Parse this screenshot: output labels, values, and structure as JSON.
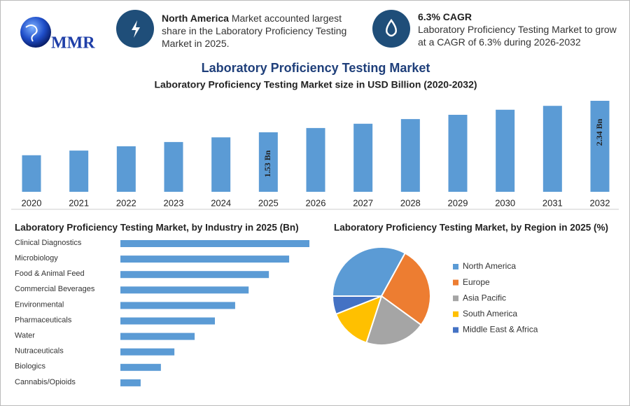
{
  "header": {
    "logo": "MMR",
    "box1": {
      "title": "North America",
      "text": "Market accounted largest share in the Laboratory Proficiency Testing Market in 2025."
    },
    "box2": {
      "title": "6.3% CAGR",
      "text": "Laboratory Proficiency Testing Market to grow at a CAGR of 6.3% during 2026-2032"
    }
  },
  "title": "Laboratory Proficiency Testing Market",
  "chart_data": [
    {
      "type": "bar",
      "title": "Laboratory Proficiency Testing Market size in USD Billion (2020-2032)",
      "categories": [
        "2020",
        "2021",
        "2022",
        "2023",
        "2024",
        "2025",
        "2026",
        "2027",
        "2028",
        "2029",
        "2030",
        "2031",
        "2032"
      ],
      "values": [
        0.94,
        1.06,
        1.17,
        1.28,
        1.4,
        1.53,
        1.64,
        1.75,
        1.87,
        1.98,
        2.11,
        2.21,
        2.34
      ],
      "value_labels": [
        null,
        null,
        null,
        null,
        null,
        "1.53 Bn",
        null,
        null,
        null,
        null,
        null,
        null,
        "2.34 Bn"
      ],
      "color": "#5b9bd5"
    },
    {
      "type": "hbar",
      "title": "Laboratory Proficiency Testing Market, by Industry in 2025 (Bn)",
      "categories": [
        "Clinical Diagnostics",
        "Microbiology",
        "Food & Animal Feed",
        "Commercial Beverages",
        "Environmental",
        "Pharmaceuticals",
        "Water",
        "Nutraceuticals",
        "Biologics",
        "Cannabis/Opioids"
      ],
      "values": [
        0.28,
        0.25,
        0.22,
        0.19,
        0.17,
        0.14,
        0.11,
        0.08,
        0.06,
        0.03
      ],
      "color": "#5b9bd5"
    },
    {
      "type": "pie",
      "title": "Laboratory Proficiency Testing Market, by Region in 2025 (%)",
      "categories": [
        "North America",
        "Europe",
        "Asia Pacific",
        "South America",
        "Middle East & Africa"
      ],
      "values": [
        33,
        27,
        20,
        14,
        6
      ],
      "colors": [
        "#5b9bd5",
        "#ed7d31",
        "#a5a5a5",
        "#ffc000",
        "#4472c4"
      ]
    }
  ]
}
